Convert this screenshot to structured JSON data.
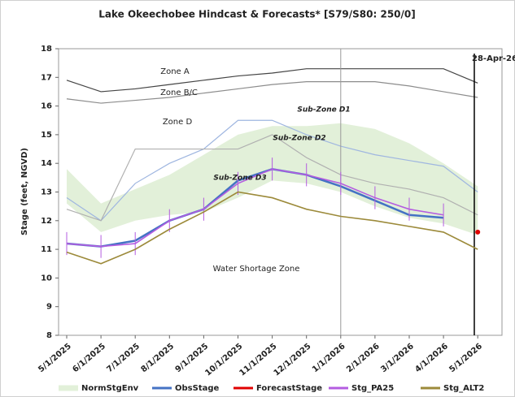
{
  "chart_data": {
    "type": "line",
    "title": "Lake Okeechobee Hindcast & Forecasts* [S79/S80: 250/0]",
    "y_label": "Stage (feet, NGVD)",
    "x": [
      "5/1/2025",
      "6/1/2025",
      "7/1/2025",
      "8/1/2025",
      "9/1/2025",
      "10/1/2025",
      "11/1/2025",
      "12/1/2025",
      "1/1/2026",
      "2/1/2026",
      "3/1/2026",
      "4/1/2026",
      "5/1/2026"
    ],
    "ylim": [
      8,
      18
    ],
    "yticks": [
      8,
      9,
      10,
      11,
      12,
      13,
      14,
      15,
      16,
      17,
      18
    ],
    "series": [
      {
        "name": "NormStgEnv",
        "color": "#e2f0d9",
        "lower": [
          12.6,
          11.6,
          12.0,
          12.2,
          12.3,
          12.8,
          13.4,
          13.3,
          13.0,
          12.5,
          12.1,
          11.9,
          11.5
        ],
        "upper": [
          13.8,
          12.6,
          13.1,
          13.6,
          14.3,
          15.0,
          15.3,
          15.3,
          15.4,
          15.2,
          14.7,
          14.0,
          13.2
        ]
      },
      {
        "name": "ObsStage",
        "color": "#4472c4",
        "values": [
          11.2,
          11.1,
          11.3,
          12.0,
          12.4,
          13.4,
          13.8,
          13.6,
          13.2,
          12.7,
          12.2,
          12.1,
          null
        ]
      },
      {
        "name": "ForecastStage",
        "color": "#e00000",
        "values": [
          null,
          null,
          null,
          null,
          null,
          null,
          null,
          null,
          null,
          null,
          null,
          null,
          11.6
        ]
      },
      {
        "name": "Stg_PA25",
        "color": "#b45ce0",
        "values": [
          11.2,
          11.1,
          11.2,
          12.0,
          12.4,
          13.3,
          13.8,
          13.6,
          13.3,
          12.8,
          12.4,
          12.2,
          null
        ],
        "error": 0.4
      },
      {
        "name": "Stg_ALT2",
        "color": "#9c8a3a",
        "values": [
          10.9,
          10.5,
          11.0,
          11.7,
          12.3,
          13.0,
          12.8,
          12.4,
          12.15,
          12.0,
          11.8,
          11.6,
          11.0
        ]
      }
    ],
    "reference_lines": [
      {
        "color": "#444444",
        "values": [
          16.9,
          16.5,
          16.6,
          16.75,
          16.9,
          17.05,
          17.15,
          17.3,
          17.3,
          17.3,
          17.3,
          17.3,
          16.8
        ]
      },
      {
        "color": "#8c8c8c",
        "values": [
          16.25,
          16.1,
          16.2,
          16.3,
          16.45,
          16.6,
          16.75,
          16.85,
          16.85,
          16.85,
          16.7,
          16.5,
          16.3
        ]
      },
      {
        "color": "#9fb6e0",
        "values": [
          12.8,
          12.0,
          13.3,
          14.0,
          14.5,
          15.5,
          15.5,
          15.0,
          14.6,
          14.3,
          14.1,
          13.9,
          13.0
        ]
      },
      {
        "color": "#b0b0b0",
        "values": [
          12.4,
          12.0,
          14.5,
          14.5,
          14.5,
          14.5,
          15.0,
          14.2,
          13.6,
          13.3,
          13.1,
          12.8,
          12.2
        ]
      }
    ],
    "annotations": [
      "Zone A",
      "Zone B/C",
      "Zone D",
      "Sub-Zone D1",
      "Sub-Zone D2",
      "Sub-Zone D3",
      "Water Shortage Zone",
      "28-Apr-26"
    ]
  }
}
